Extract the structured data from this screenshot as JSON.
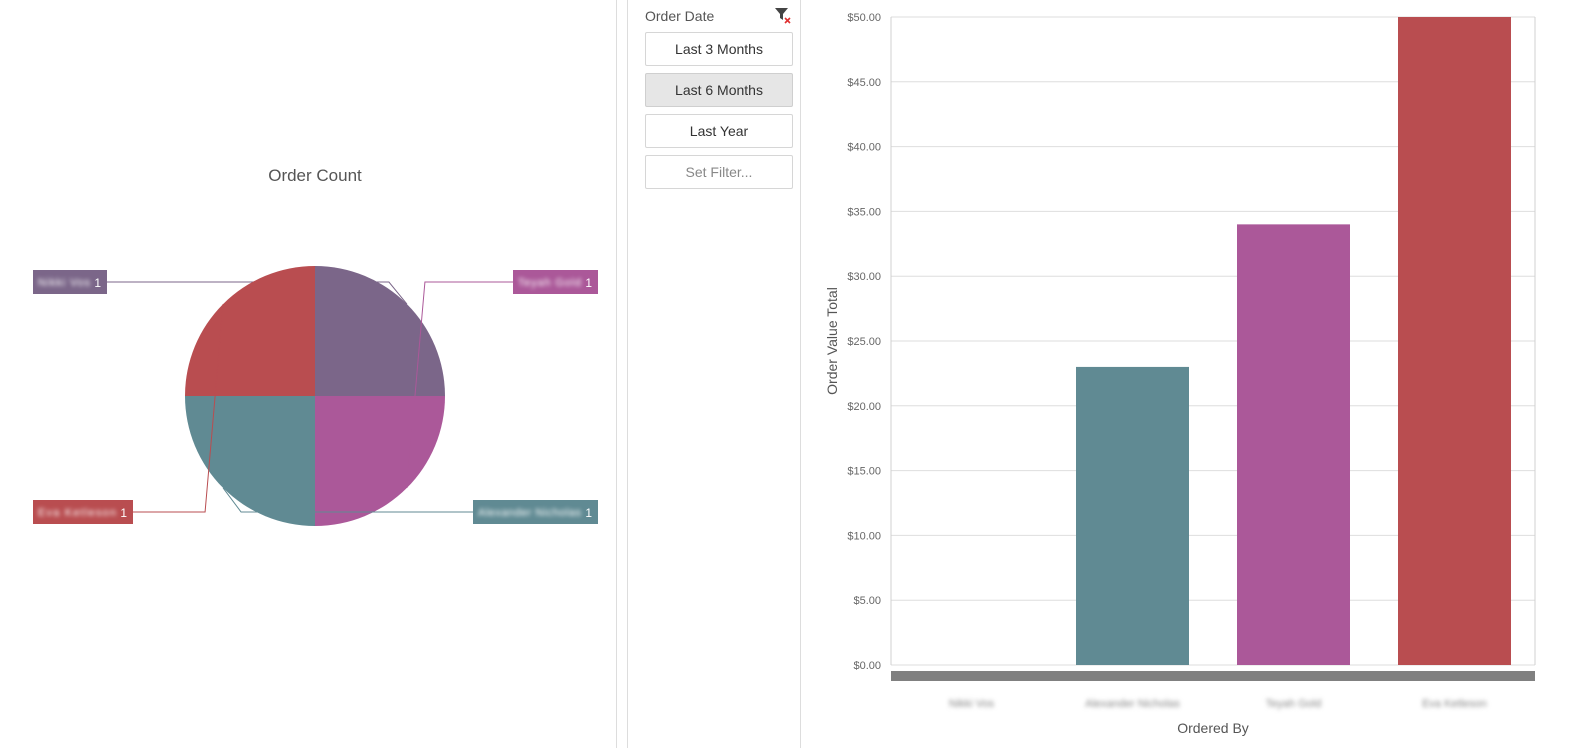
{
  "pie_panel": {
    "chart_data": {
      "type": "pie",
      "title": "Order Count",
      "slices": [
        {
          "label": "Nikki Vos",
          "value": 1,
          "color": "#7b6689"
        },
        {
          "label": "Teyah Gold",
          "value": 1,
          "color": "#ab5899"
        },
        {
          "label": "Alexander Nicholas",
          "value": 1,
          "color": "#608a93"
        },
        {
          "label": "Eva Ketleson",
          "value": 1,
          "color": "#b94d50"
        }
      ]
    }
  },
  "filter_panel": {
    "title": "Order Date",
    "clear_icon": "filter-clear-icon",
    "buttons": [
      {
        "label": "Last 3 Months",
        "selected": false
      },
      {
        "label": "Last 6 Months",
        "selected": true
      },
      {
        "label": "Last Year",
        "selected": false
      },
      {
        "label": "Set Filter...",
        "selected": false
      }
    ]
  },
  "bar_panel": {
    "chart_data": {
      "type": "bar",
      "xlabel": "Ordered By",
      "ylabel": "Order Value Total",
      "categories": [
        "Nikki Vos",
        "Alexander Nicholas",
        "Teyah Gold",
        "Eva Ketleson"
      ],
      "values": [
        0,
        23,
        34,
        50
      ],
      "colors": [
        "#7b6689",
        "#608a93",
        "#ab5899",
        "#b94d50"
      ],
      "yticks": [
        "$0.00",
        "$5.00",
        "$10.00",
        "$15.00",
        "$20.00",
        "$25.00",
        "$30.00",
        "$35.00",
        "$40.00",
        "$45.00",
        "$50.00"
      ],
      "ylim": [
        0,
        50
      ],
      "grid": true
    }
  }
}
